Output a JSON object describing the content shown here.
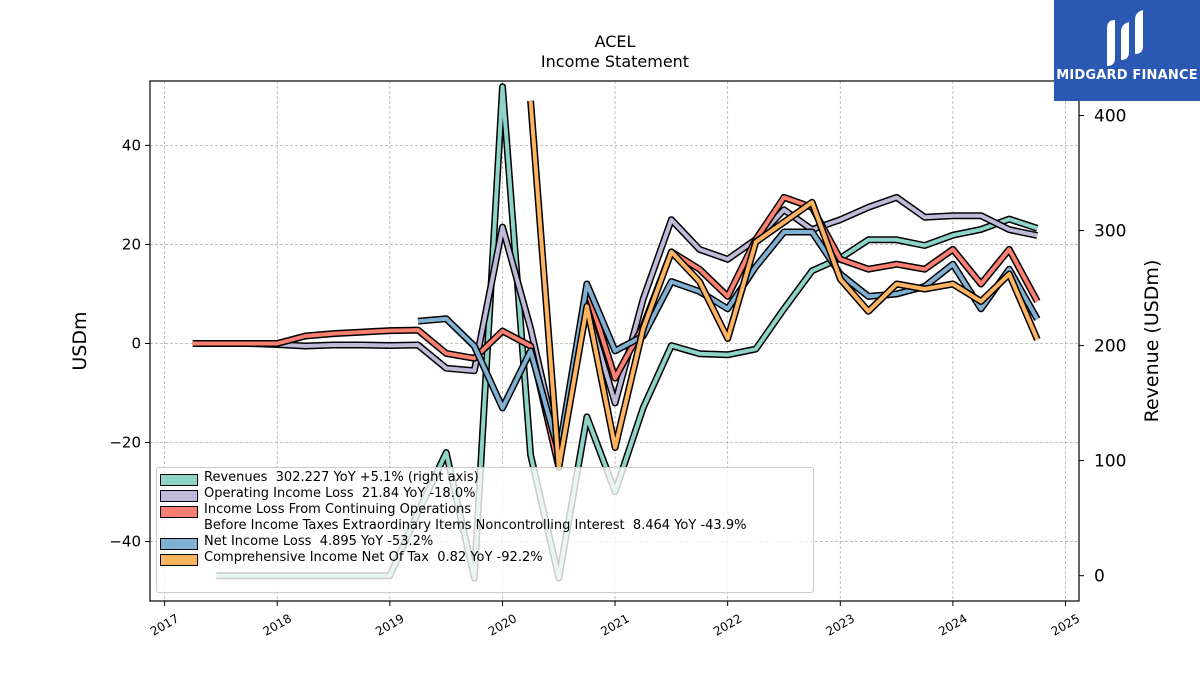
{
  "header": {
    "title": "ACEL",
    "subtitle": "Income Statement"
  },
  "logo": {
    "text": "MIDGARD FINANCE",
    "background": "#2b58b3"
  },
  "chart_data": {
    "type": "line",
    "ylabel_left": "USDm",
    "ylabel_right": "Revenue (USDm)",
    "ylim_left": [
      -52,
      53
    ],
    "ylim_right": [
      -22,
      430
    ],
    "left_ticks": [
      -40,
      -20,
      0,
      20,
      40
    ],
    "right_ticks": [
      0,
      100,
      200,
      300,
      400
    ],
    "x_ticks": [
      "2017",
      "2018",
      "2019",
      "2020",
      "2021",
      "2022",
      "2023",
      "2024",
      "2025"
    ],
    "xlim": [
      2016.87,
      2025.12
    ],
    "grid": true,
    "legend_position": "lower-left",
    "series": [
      {
        "name": "Revenues",
        "legend": "Revenues  302.227 YoY +5.1% (right axis)",
        "axis": "right",
        "color": "#8dd3c7",
        "x": [
          2017.46,
          2018.0,
          2019.0,
          2019.25,
          2019.5,
          2019.75,
          2020.0,
          2020.25,
          2020.5,
          2020.75,
          2021.0,
          2021.25,
          2021.5,
          2021.75,
          2022.0,
          2022.25,
          2022.5,
          2022.75,
          2023.0,
          2023.25,
          2023.5,
          2023.75,
          2024.0,
          2024.25,
          2024.5,
          2024.75
        ],
        "values": [
          0,
          0,
          0,
          55,
          107,
          -2,
          425,
          105,
          -2,
          138,
          73,
          146,
          200,
          193,
          192,
          197,
          232,
          265,
          276,
          292,
          292,
          287,
          296,
          301,
          310,
          302
        ]
      },
      {
        "name": "Operating Income Loss",
        "legend": "Operating Income Loss  21.84 YoY -18.0%",
        "axis": "left",
        "color": "#bebada",
        "x": [
          2017.25,
          2017.5,
          2017.75,
          2018.0,
          2018.25,
          2018.5,
          2018.75,
          2019.0,
          2019.25,
          2019.5,
          2019.75,
          2020.0,
          2020.25,
          2020.5,
          2020.75,
          2021.0,
          2021.25,
          2021.5,
          2021.75,
          2022.0,
          2022.25,
          2022.5,
          2022.75,
          2023.0,
          2023.25,
          2023.5,
          2023.75,
          2024.0,
          2024.25,
          2024.5,
          2024.75
        ],
        "values": [
          0,
          0,
          0,
          -0.2,
          -0.5,
          -0.3,
          -0.3,
          -0.4,
          -0.3,
          -5,
          -5.5,
          23.5,
          3,
          -22,
          7,
          -12,
          9,
          25,
          19,
          17,
          21,
          27,
          23,
          25,
          27.5,
          29.5,
          25.5,
          25.8,
          25.8,
          23,
          21.8
        ]
      },
      {
        "name": "Income Loss From Continuing Operations Before Income Taxes Extraordinary Items Noncontrolling Interest",
        "legend": "Income Loss From Continuing Operations\nBefore Income Taxes Extraordinary Items Noncontrolling Interest  8.464 YoY -43.9%",
        "axis": "left",
        "color": "#fb8072",
        "x": [
          2017.25,
          2017.5,
          2017.75,
          2018.0,
          2018.25,
          2018.5,
          2018.75,
          2019.0,
          2019.25,
          2019.5,
          2019.75,
          2020.0,
          2020.25,
          2020.5,
          2020.75,
          2021.0,
          2021.25,
          2021.5,
          2021.75,
          2022.0,
          2022.25,
          2022.5,
          2022.75,
          2023.0,
          2023.25,
          2023.5,
          2023.75,
          2024.0,
          2024.25,
          2024.5,
          2024.75
        ],
        "values": [
          0,
          0,
          0,
          0,
          1.5,
          2,
          2.3,
          2.6,
          2.7,
          -2,
          -3,
          2.5,
          -0.5,
          -25,
          11,
          -7,
          3.5,
          18.5,
          15,
          9.5,
          21,
          29.5,
          27.5,
          17,
          15,
          16,
          15,
          19,
          12,
          19,
          8.5
        ]
      },
      {
        "name": "Net Income Loss",
        "legend": "Net Income Loss  4.895 YoY -53.2%",
        "axis": "left",
        "color": "#80b1d3",
        "x": [
          2019.25,
          2019.5,
          2019.75,
          2020.0,
          2020.25,
          2020.5,
          2020.75,
          2021.0,
          2021.25,
          2021.5,
          2021.75,
          2022.0,
          2022.25,
          2022.5,
          2022.75,
          2023.0,
          2023.25,
          2023.5,
          2023.75,
          2024.0,
          2024.25,
          2024.5,
          2024.75
        ],
        "values": [
          4.5,
          5,
          -0.5,
          -13,
          -1.5,
          -22,
          12,
          -1.5,
          1.5,
          12.5,
          10.5,
          7,
          15.5,
          22.5,
          22.5,
          14,
          9.5,
          10,
          11.5,
          16,
          7,
          15,
          4.9
        ]
      },
      {
        "name": "Comprehensive Income Net Of Tax",
        "legend": "Comprehensive Income Net Of Tax  0.82 YoY -92.2%",
        "axis": "left",
        "color": "#fdb462",
        "x": [
          2020.25,
          2020.5,
          2020.75,
          2021.0,
          2021.25,
          2021.5,
          2021.75,
          2022.0,
          2022.25,
          2022.5,
          2022.75,
          2023.0,
          2023.25,
          2023.5,
          2023.75,
          2024.0,
          2024.25,
          2024.5,
          2024.75
        ],
        "values": [
          49,
          -25,
          7.5,
          -21,
          3,
          18.5,
          12.5,
          1,
          20.5,
          24.5,
          28.5,
          13,
          6.5,
          12,
          11,
          12,
          8.5,
          14,
          0.8
        ]
      }
    ]
  }
}
